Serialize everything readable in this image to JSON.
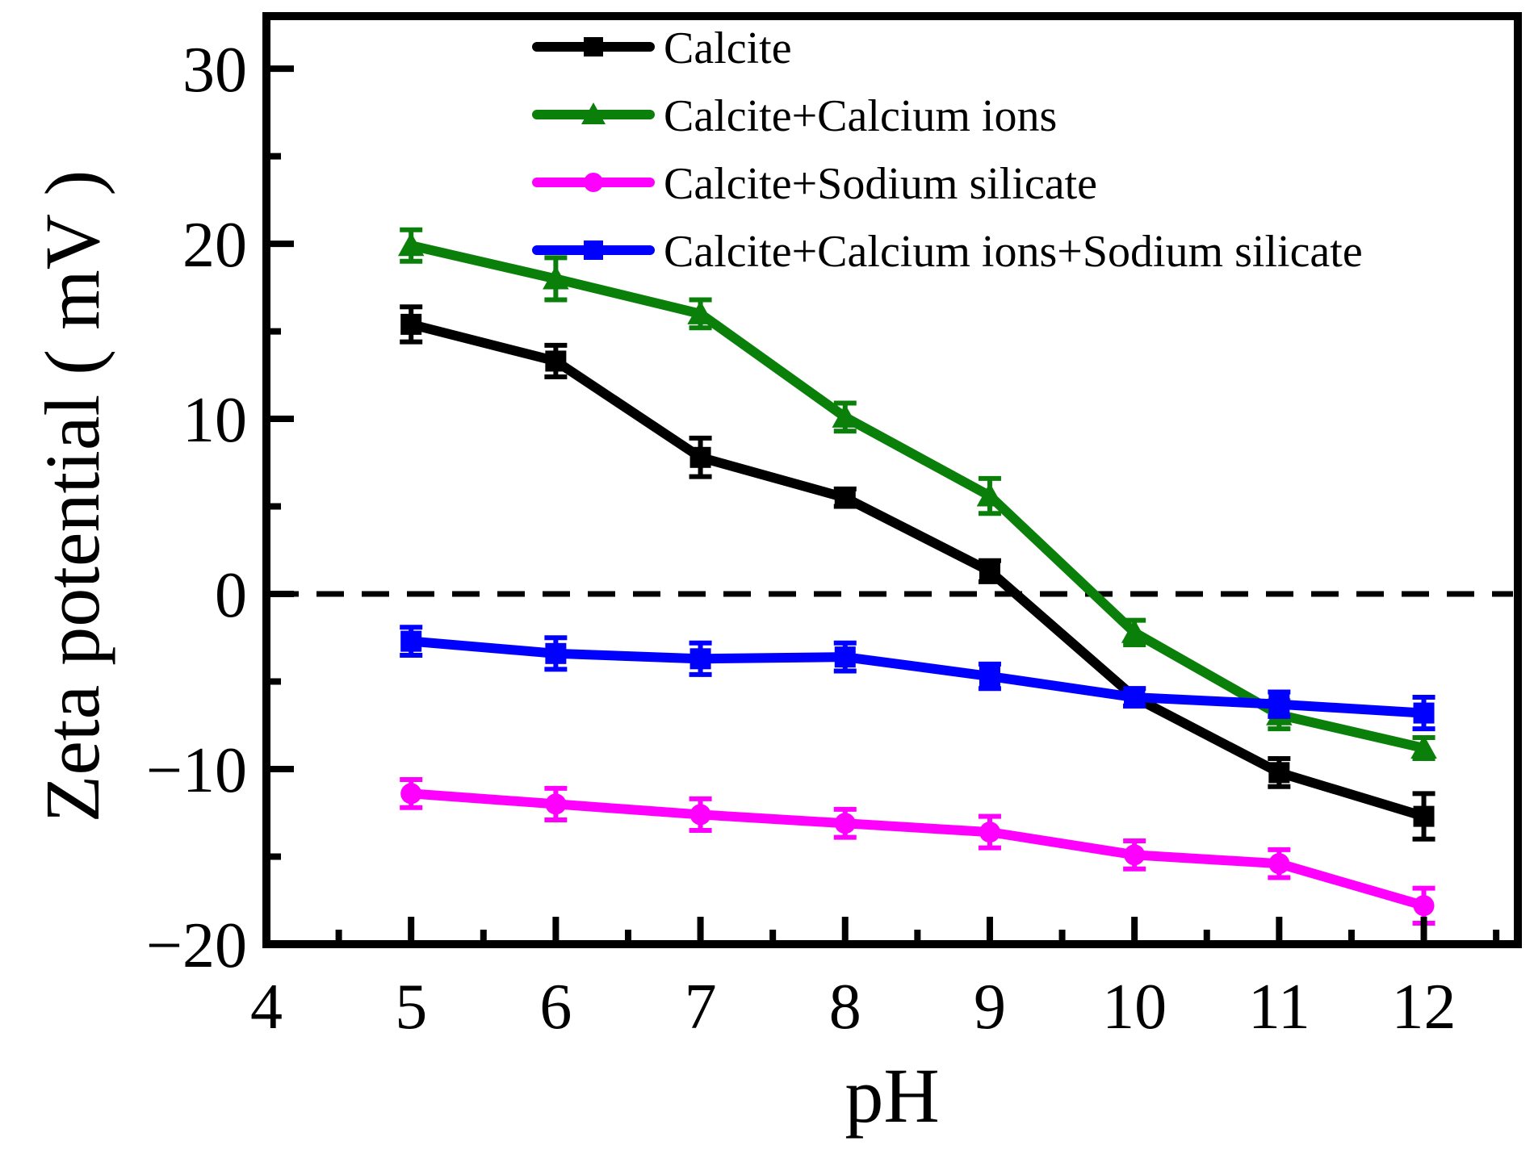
{
  "chart_data": {
    "type": "line",
    "title": "",
    "xlabel": "pH",
    "ylabel": "Zeta potential ( mV )",
    "xlim": [
      4,
      12.65
    ],
    "ylim": [
      -20,
      33
    ],
    "x_ticks": [
      4,
      5,
      6,
      7,
      8,
      9,
      10,
      11,
      12
    ],
    "y_ticks": [
      -20,
      -10,
      0,
      10,
      20,
      30
    ],
    "y_tick_labels": [
      "−20",
      "−10",
      "0",
      "10",
      "20",
      "30"
    ],
    "reference_line": {
      "y": 0,
      "style": "dashed"
    },
    "legend_position": "top",
    "x": [
      5,
      6,
      7,
      8,
      9,
      10,
      11,
      12
    ],
    "series": [
      {
        "name": "Calcite",
        "color": "#000000",
        "marker": "square",
        "values": [
          15.4,
          13.3,
          7.8,
          5.5,
          1.3,
          -5.9,
          -10.2,
          -12.7
        ],
        "errors": [
          1.0,
          0.9,
          1.1,
          0.5,
          0.6,
          0.5,
          0.8,
          1.3
        ]
      },
      {
        "name": "Calcite+Calcium ions",
        "color": "#0A800A",
        "marker": "triangle",
        "values": [
          19.9,
          18.0,
          16.0,
          10.1,
          5.6,
          -2.2,
          -6.9,
          -8.8
        ],
        "errors": [
          0.9,
          1.2,
          0.8,
          0.8,
          1.0,
          0.7,
          0.8,
          0.6
        ]
      },
      {
        "name": "Calcite+Sodium silicate",
        "color": "#FF00FF",
        "marker": "circle",
        "values": [
          -11.4,
          -12.0,
          -12.6,
          -13.1,
          -13.6,
          -14.9,
          -15.4,
          -17.8
        ],
        "errors": [
          0.8,
          0.9,
          0.9,
          0.8,
          0.9,
          0.8,
          0.8,
          1.0
        ]
      },
      {
        "name": "Calcite+Calcium ions+Sodium silicate",
        "color": "#0000FF",
        "marker": "square",
        "values": [
          -2.7,
          -3.4,
          -3.7,
          -3.6,
          -4.7,
          -5.9,
          -6.3,
          -6.8
        ],
        "errors": [
          0.8,
          0.9,
          0.9,
          0.8,
          0.7,
          0.5,
          0.7,
          0.9
        ]
      }
    ]
  }
}
